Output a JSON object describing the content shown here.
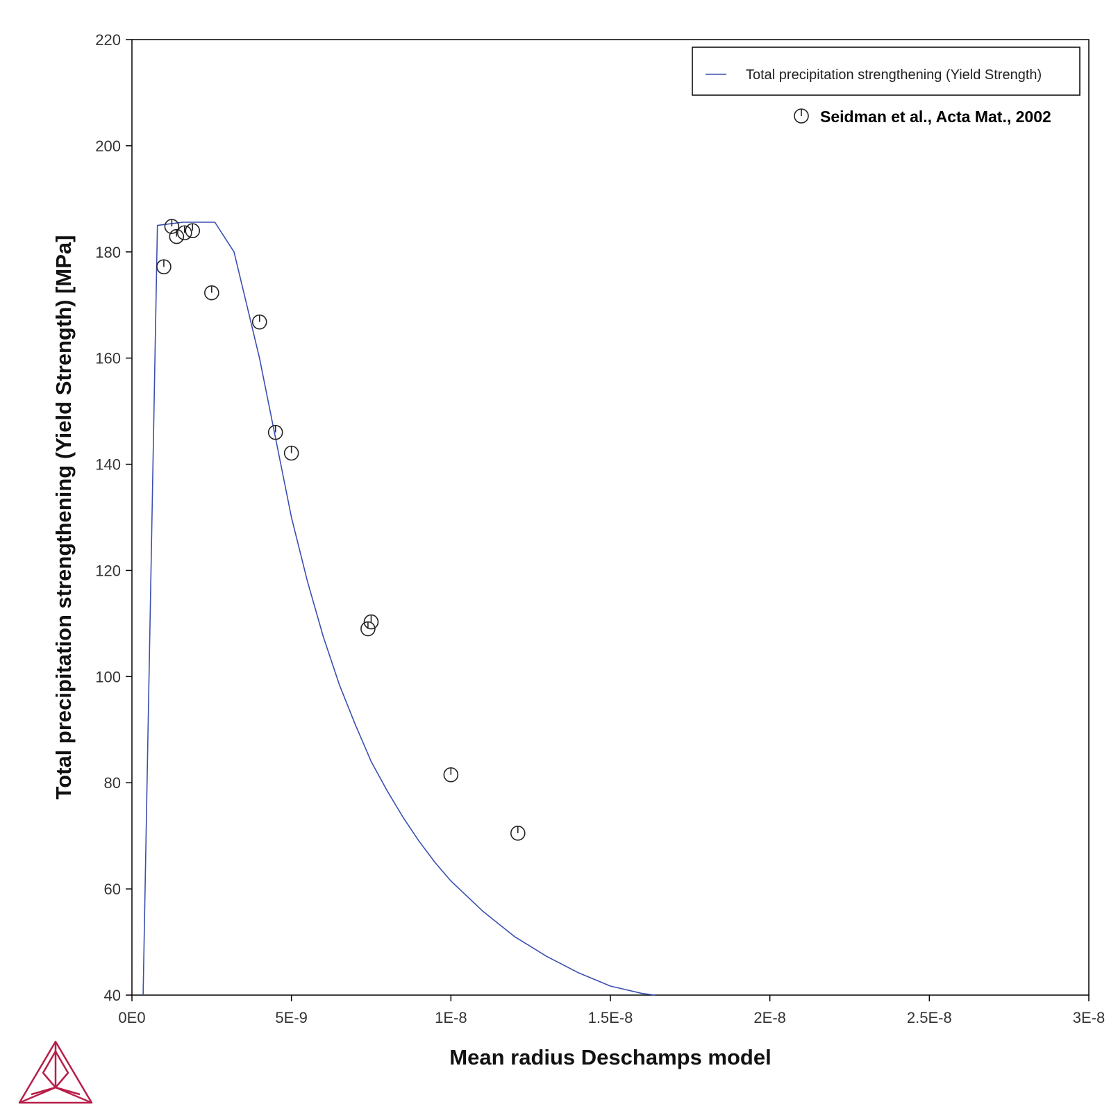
{
  "chart_data": {
    "type": "line",
    "xlabel": "Mean radius Deschamps model",
    "ylabel": "Total precipitation strengthening (Yield Strength) [MPa]",
    "xlim": [
      0,
      3e-08
    ],
    "ylim": [
      40,
      220
    ],
    "x_ticks": [
      0,
      5e-09,
      1e-08,
      1.5e-08,
      2e-08,
      2.5e-08,
      3e-08
    ],
    "x_tick_labels": [
      "0E0",
      "5E-9",
      "1E-8",
      "1.5E-8",
      "2E-8",
      "2.5E-8",
      "3E-8"
    ],
    "y_ticks": [
      40,
      60,
      80,
      100,
      120,
      140,
      160,
      180,
      200,
      220
    ],
    "y_tick_labels": [
      "40",
      "60",
      "80",
      "100",
      "120",
      "140",
      "160",
      "180",
      "200",
      "220"
    ],
    "legend_position": "top-right",
    "series": [
      {
        "name": "Total precipitation strengthening (Yield Strength)",
        "kind": "line",
        "color": "#3a4fb0",
        "points": [
          [
            3.5e-10,
            40
          ],
          [
            8e-10,
            185
          ],
          [
            1.6e-09,
            185.6
          ],
          [
            2.6e-09,
            185.6
          ],
          [
            3.2e-09,
            180
          ],
          [
            3.6e-09,
            170
          ],
          [
            4e-09,
            160
          ],
          [
            4.5e-09,
            145
          ],
          [
            5e-09,
            130
          ],
          [
            5.5e-09,
            118
          ],
          [
            6e-09,
            107.5
          ],
          [
            6.5e-09,
            98.5
          ],
          [
            7e-09,
            91
          ],
          [
            7.5e-09,
            84
          ],
          [
            8e-09,
            78.5
          ],
          [
            8.5e-09,
            73.5
          ],
          [
            9e-09,
            69
          ],
          [
            9.5e-09,
            65
          ],
          [
            1e-08,
            61.5
          ],
          [
            1.1e-08,
            55.8
          ],
          [
            1.2e-08,
            51
          ],
          [
            1.3e-08,
            47.3
          ],
          [
            1.4e-08,
            44.2
          ],
          [
            1.5e-08,
            41.7
          ],
          [
            1.6e-08,
            40.3
          ],
          [
            1.64e-08,
            40
          ]
        ]
      },
      {
        "name": "Seidman et al., Acta Mat., 2002",
        "kind": "scatter",
        "color": "#222222",
        "points": [
          [
            1e-09,
            177.2
          ],
          [
            1.25e-09,
            184.8
          ],
          [
            1.4e-09,
            182.9
          ],
          [
            1.65e-09,
            183.6
          ],
          [
            1.9e-09,
            184.0
          ],
          [
            2.5e-09,
            172.3
          ],
          [
            4e-09,
            166.8
          ],
          [
            4.5e-09,
            146.0
          ],
          [
            5e-09,
            142.1
          ],
          [
            7.4e-09,
            109.0
          ],
          [
            7.5e-09,
            110.3
          ],
          [
            1e-08,
            81.5
          ],
          [
            1.21e-08,
            70.5
          ]
        ]
      }
    ]
  },
  "logo": {
    "name": "triangle-logo",
    "color": "#b81e4a"
  }
}
